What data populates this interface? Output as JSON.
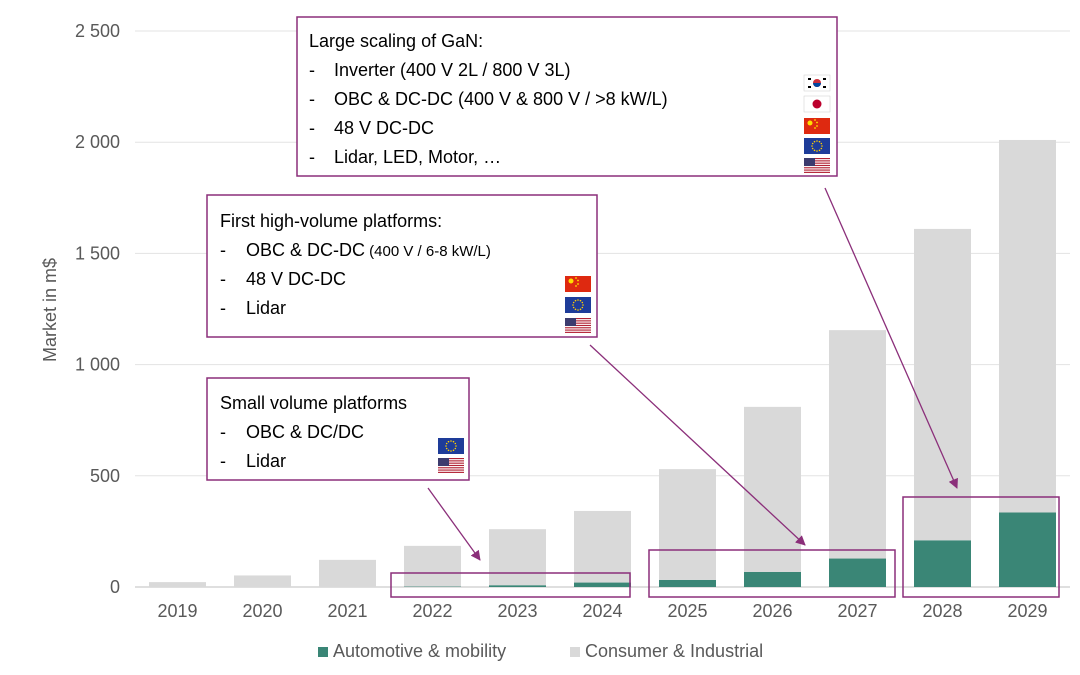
{
  "chart_data": {
    "type": "bar",
    "stacked": true,
    "categories": [
      "2019",
      "2020",
      "2021",
      "2022",
      "2023",
      "2024",
      "2025",
      "2026",
      "2027",
      "2028",
      "2029"
    ],
    "series": [
      {
        "name": "Automotive & mobility",
        "color": "#3a8676",
        "values": [
          0,
          0,
          0,
          2,
          8,
          20,
          32,
          68,
          128,
          210,
          335
        ]
      },
      {
        "name": "Consumer & Industrial",
        "color": "#d9d9d9",
        "values": [
          22,
          52,
          122,
          183,
          252,
          322,
          498,
          742,
          1027,
          1400,
          1675
        ]
      }
    ],
    "ylabel": "Market in m$",
    "ylim": [
      0,
      2500
    ],
    "yticks": [
      0,
      500,
      1000,
      1500,
      2000,
      2500
    ],
    "ytick_labels": [
      "0",
      "500",
      "1 000",
      "1 500",
      "2 000",
      "2 500"
    ],
    "grid": true,
    "legend_position": "bottom",
    "annotations": [
      {
        "id": "large",
        "title": "Large scaling of GaN:",
        "items": [
          {
            "dash": "-",
            "text": "Inverter (400 V 2L / 800 V 3L)",
            "small": ""
          },
          {
            "dash": "-",
            "text": "OBC & DC-DC (400 V & 800 V / >8 kW/L)",
            "small": ""
          },
          {
            "dash": "-",
            "text": "48 V DC-DC",
            "small": ""
          },
          {
            "dash": "-",
            "text": "Lidar, LED, Motor, …",
            "small": ""
          }
        ],
        "flags": [
          "korea-flag",
          "japan-flag",
          "china-flag",
          "eu-flag",
          "usa-flag"
        ]
      },
      {
        "id": "first",
        "title": "First high-volume platforms:",
        "items": [
          {
            "dash": "-",
            "text": "OBC & DC-DC",
            "small": " (400 V / 6-8 kW/L)"
          },
          {
            "dash": "-",
            "text": "48 V DC-DC",
            "small": ""
          },
          {
            "dash": "-",
            "text": "Lidar",
            "small": ""
          }
        ],
        "flags": [
          "china-flag",
          "eu-flag",
          "usa-flag"
        ]
      },
      {
        "id": "small",
        "title": "Small volume platforms",
        "items": [
          {
            "dash": "-",
            "text": "OBC & DC/DC",
            "small": ""
          },
          {
            "dash": "-",
            "text": "Lidar",
            "small": ""
          }
        ],
        "flags": [
          "eu-flag",
          "usa-flag"
        ]
      }
    ],
    "highlight_ranges": [
      [
        "2022",
        "2024"
      ],
      [
        "2025",
        "2027"
      ],
      [
        "2028",
        "2029"
      ]
    ],
    "highlight_color": "#8b2f7a"
  }
}
